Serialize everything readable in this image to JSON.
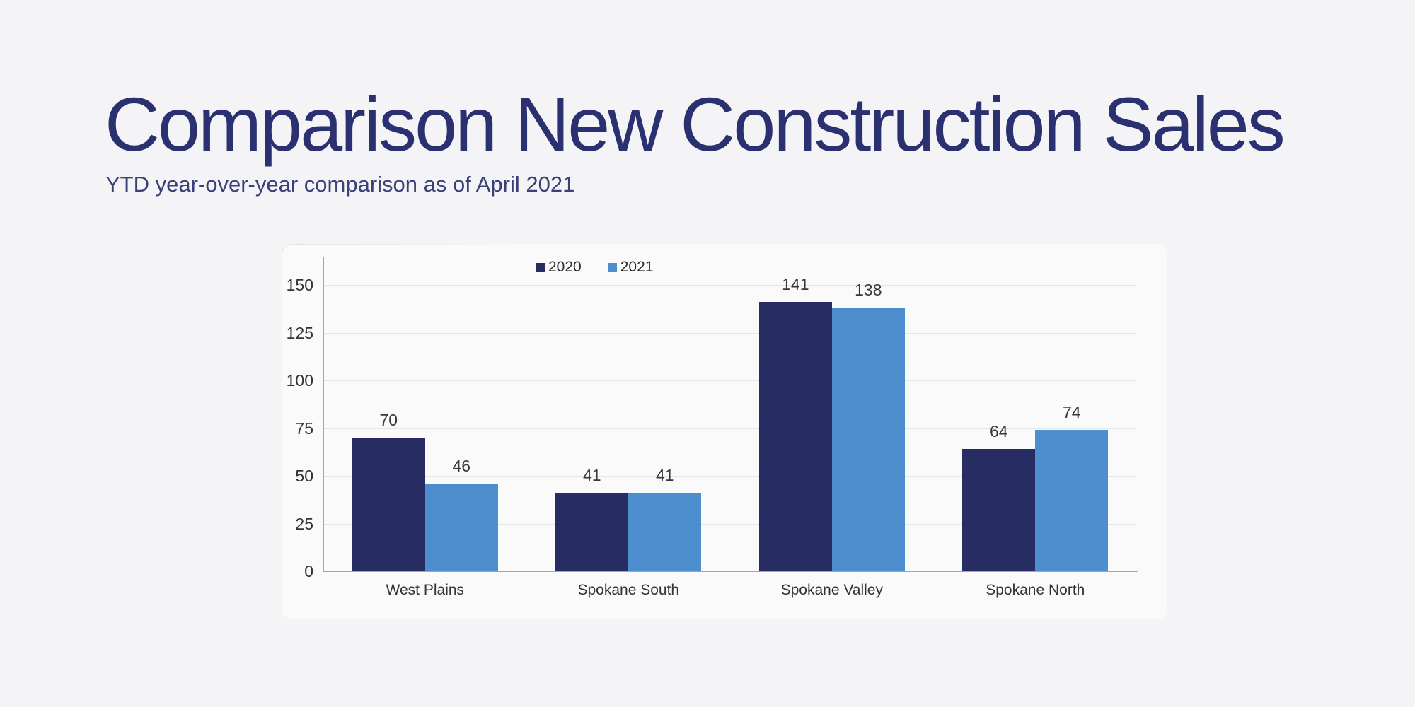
{
  "slide": {
    "title": "Comparison New Construction Sales",
    "subtitle": "YTD year-over-year comparison as of April 2021"
  },
  "colors": {
    "page_background": "#f4f4f6",
    "panel_background": "#fafafb",
    "title_text": "#2b3170",
    "subtitle_text": "#3a4178",
    "series_2020": "#272c62",
    "series_2021": "#4d8fce",
    "gridline": "#e4e4ef",
    "axis_line": "#a6a6a6",
    "chart_text": "#333333"
  },
  "chart_data": {
    "type": "bar",
    "title": "Comparison New Construction Sales",
    "subtitle": "YTD year-over-year comparison as of April 2021",
    "categories": [
      "West Plains",
      "Spokane South",
      "Spokane Valley",
      "Spokane North"
    ],
    "series": [
      {
        "name": "2020",
        "color": "#272c62",
        "values": [
          70,
          41,
          141,
          64
        ]
      },
      {
        "name": "2021",
        "color": "#4d8fce",
        "values": [
          46,
          41,
          138,
          74
        ]
      }
    ],
    "xlabel": "",
    "ylabel": "",
    "ylim": [
      0,
      150
    ],
    "yticks": [
      0,
      25,
      50,
      75,
      100,
      125,
      150
    ],
    "grid": true,
    "value_labels": true,
    "legend_position": "top-left-of-plot"
  }
}
